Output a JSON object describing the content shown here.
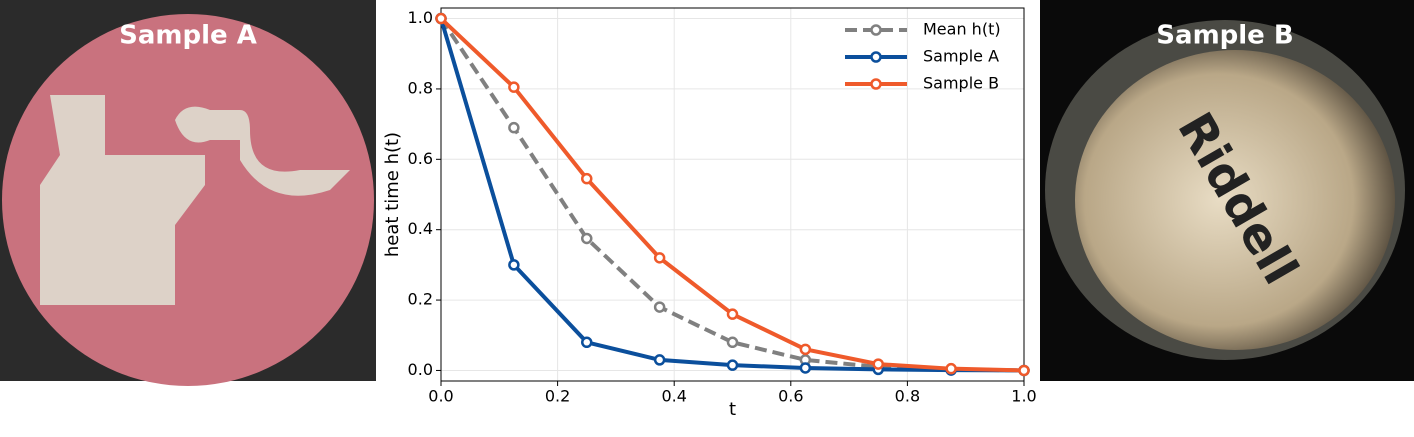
{
  "images": [
    {
      "label": "Sample A"
    },
    {
      "label": "Sample B"
    }
  ],
  "chart_data": {
    "type": "line",
    "x": [
      0,
      0.125,
      0.25,
      0.375,
      0.5,
      0.625,
      0.75,
      0.875,
      1.0
    ],
    "series": [
      {
        "name": "Mean h(t)",
        "color": "#808080",
        "dashed": true,
        "values": [
          1.0,
          0.69,
          0.375,
          0.18,
          0.08,
          0.03,
          0.01,
          0.003,
          0.0
        ]
      },
      {
        "name": "Sample A",
        "color": "#0b4f9c",
        "values": [
          1.0,
          0.3,
          0.08,
          0.03,
          0.015,
          0.007,
          0.003,
          0.001,
          0.0
        ]
      },
      {
        "name": "Sample B",
        "color": "#ef5a2b",
        "values": [
          1.0,
          0.805,
          0.545,
          0.32,
          0.16,
          0.06,
          0.018,
          0.005,
          0.0
        ]
      }
    ],
    "xlabel": "t",
    "ylabel": "heat time h(t)",
    "xlim": [
      0,
      1
    ],
    "ylim": [
      -0.03,
      1.03
    ],
    "xticks": [
      {
        "value": 0,
        "label": "0.0"
      },
      {
        "value": 0.2,
        "label": "0.2"
      },
      {
        "value": 0.4,
        "label": "0.4"
      },
      {
        "value": 0.6,
        "label": "0.6"
      },
      {
        "value": 0.8,
        "label": "0.8"
      },
      {
        "value": 1,
        "label": "1.0"
      }
    ],
    "yticks": [
      {
        "value": 0,
        "label": "0.0"
      },
      {
        "value": 0.2,
        "label": "0.2"
      },
      {
        "value": 0.4,
        "label": "0.4"
      },
      {
        "value": 0.6,
        "label": "0.6"
      },
      {
        "value": 0.8,
        "label": "0.8"
      },
      {
        "value": 1,
        "label": "1.0"
      }
    ],
    "grid": true,
    "legend": "upper right"
  }
}
